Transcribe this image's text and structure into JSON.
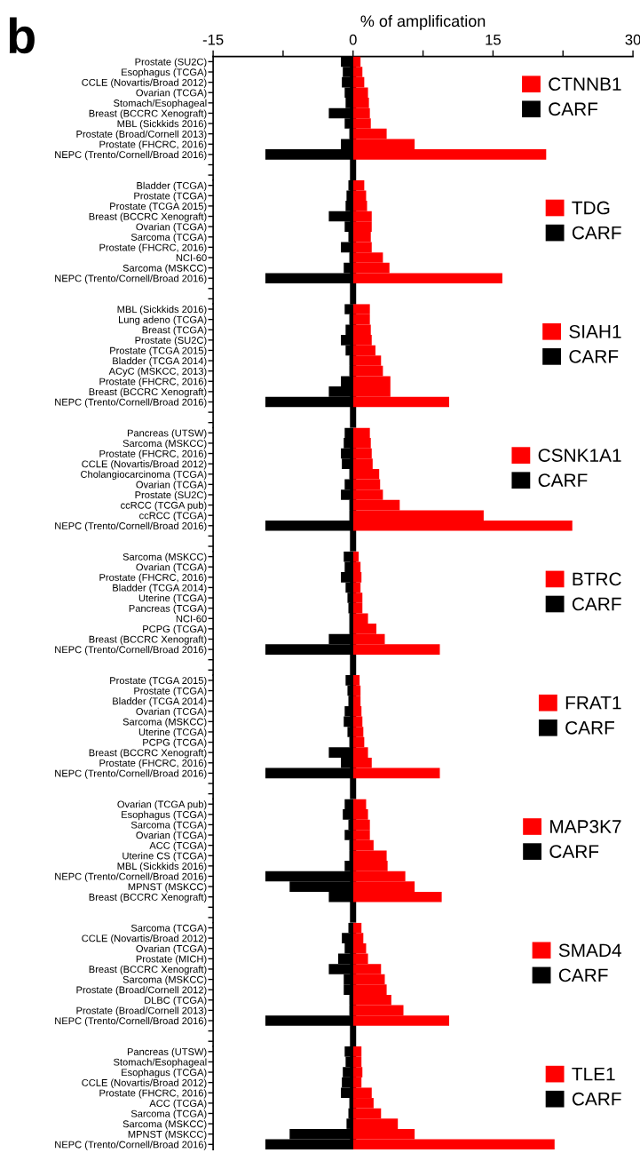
{
  "chart_data": [
    {
      "type": "bar",
      "orientation": "horizontal",
      "stacked": true,
      "xlabel": "% of amplification",
      "annotations": [
        "b"
      ],
      "xlim": [
        -15,
        30
      ],
      "xticks": [
        -15,
        {
          "value": -7.5,
          "label": null
        },
        0,
        {
          "value": 7.5,
          "label": null
        },
        15,
        {
          "value": 22.5,
          "label": null
        },
        30
      ],
      "legend": "top right",
      "ref_lines": [
        {
          "axis": "x",
          "value": 0,
          "label": null,
          "color": "#000000"
        }
      ],
      "categories": [
        "Prostate (SU2C)",
        "Esophagus (TCGA)",
        "CCLE (Novartis/Broad 2012)",
        "Ovarian (TCGA)",
        "Stomach/Esophageal",
        "Breast (BCCRC Xenograft)",
        "MBL (Sickkids 2016)",
        "Prostate (Broad/Cornell 2013)",
        "Prostate (FHCRC, 2016)",
        "NEPC (Trento/Cornell/Broad 2016)"
      ],
      "series": [
        {
          "name": "CTNNB1",
          "color": "#ff0000",
          "values": [
            0.8,
            1.0,
            1.2,
            1.6,
            1.7,
            1.8,
            1.9,
            3.6,
            6.6,
            20.7
          ]
        },
        {
          "name": "CARF",
          "color": "#000000",
          "values": [
            -1.3,
            -1.1,
            -1.2,
            -0.9,
            -0.8,
            -2.6,
            -0.9,
            -0.4,
            -1.3,
            -9.4
          ]
        }
      ]
    },
    {
      "type": "bar",
      "orientation": "horizontal",
      "stacked": true,
      "tick_labels": "y",
      "xlim": [
        -15,
        30
      ],
      "legend": "top right",
      "ref_lines": [
        {
          "axis": "x",
          "value": 0,
          "label": null,
          "color": "#000000"
        }
      ],
      "categories": [
        "Bladder (TCGA)",
        "Prostate (TCGA)",
        "Prostate (TCGA 2015)",
        "Breast (BCCRC Xenograft)",
        "Ovarian (TCGA)",
        "Sarcoma (TCGA)",
        "Prostate (FHCRC, 2016)",
        "NCI-60",
        "Sarcoma (MSKCC)",
        "NEPC (Trento/Cornell/Broad 2016)"
      ],
      "series": [
        {
          "name": "TDG",
          "color": "#ff0000",
          "values": [
            1.2,
            1.4,
            1.5,
            2.0,
            2.0,
            1.9,
            2.0,
            3.2,
            3.9,
            16.0
          ]
        },
        {
          "name": "CARF",
          "color": "#000000",
          "values": [
            -0.5,
            -0.7,
            -0.8,
            -2.6,
            -0.9,
            -0.5,
            -1.3,
            -0.4,
            -1.0,
            -9.4
          ]
        }
      ]
    },
    {
      "type": "bar",
      "orientation": "horizontal",
      "stacked": true,
      "tick_labels": "y",
      "xlim": [
        -15,
        30
      ],
      "legend": "top right",
      "ref_lines": [
        {
          "axis": "x",
          "value": 0,
          "label": null,
          "color": "#000000"
        }
      ],
      "categories": [
        "MBL (Sickkids 2016)",
        "Lung adeno (TCGA)",
        "Breast (TCGA)",
        "Prostate (SU2C)",
        "Prostate (TCGA 2015)",
        "Bladder (TCGA 2014)",
        "ACyC (MSKCC, 2013)",
        "Prostate (FHCRC, 2016)",
        "Breast (BCCRC Xenograft)",
        "NEPC (Trento/Cornell/Broad 2016)"
      ],
      "series": [
        {
          "name": "SIAH1",
          "color": "#ff0000",
          "values": [
            1.8,
            1.8,
            1.9,
            2.0,
            2.4,
            3.0,
            3.2,
            4.0,
            4.0,
            10.3
          ]
        },
        {
          "name": "CARF",
          "color": "#000000",
          "values": [
            -0.9,
            -0.4,
            -0.8,
            -1.3,
            -0.8,
            -0.4,
            -0.4,
            -1.3,
            -2.6,
            -9.4
          ]
        }
      ]
    },
    {
      "type": "bar",
      "orientation": "horizontal",
      "stacked": true,
      "tick_labels": "y",
      "xlim": [
        -15,
        30
      ],
      "legend": "top right",
      "ref_lines": [
        {
          "axis": "x",
          "value": 0,
          "label": null,
          "color": "#000000"
        }
      ],
      "categories": [
        "Pancreas (UTSW)",
        "Sarcoma (MSKCC)",
        "Prostate (FHCRC, 2016)",
        "CCLE (Novartis/Broad 2012)",
        "Cholangiocarcinoma (TCGA)",
        "Ovarian (TCGA)",
        "Prostate (SU2C)",
        "ccRCC (TCGA pub)",
        "ccRCC (TCGA)",
        "NEPC (Trento/Cornell/Broad 2016)"
      ],
      "series": [
        {
          "name": "CSNK1A1",
          "color": "#ff0000",
          "values": [
            1.8,
            1.9,
            2.0,
            2.1,
            2.8,
            2.9,
            3.2,
            5.0,
            14.0,
            23.5
          ]
        },
        {
          "name": "CARF",
          "color": "#000000",
          "values": [
            -0.9,
            -1.0,
            -1.3,
            -1.2,
            -0.4,
            -0.9,
            -1.3,
            -0.4,
            -0.4,
            -9.4
          ]
        }
      ]
    },
    {
      "type": "bar",
      "orientation": "horizontal",
      "stacked": true,
      "tick_labels": "y",
      "xlim": [
        -15,
        30
      ],
      "legend": "top right",
      "ref_lines": [
        {
          "axis": "x",
          "value": 0,
          "label": null,
          "color": "#000000"
        }
      ],
      "categories": [
        "Sarcoma (MSKCC)",
        "Ovarian (TCGA)",
        "Prostate (FHCRC, 2016)",
        "Bladder (TCGA 2014)",
        "Uterine (TCGA)",
        "Pancreas (TCGA)",
        "NCI-60",
        "PCPG (TCGA)",
        "Breast (BCCRC Xenograft)",
        "NEPC (Trento/Cornell/Broad 2016)"
      ],
      "series": [
        {
          "name": "BTRC",
          "color": "#ff0000",
          "values": [
            0.6,
            0.8,
            0.9,
            0.8,
            1.0,
            1.0,
            1.6,
            2.5,
            3.4,
            9.3
          ]
        },
        {
          "name": "CARF",
          "color": "#000000",
          "values": [
            -1.0,
            -0.9,
            -1.3,
            -0.8,
            -0.6,
            -0.5,
            -0.4,
            -0.4,
            -2.6,
            -9.4
          ]
        }
      ]
    },
    {
      "type": "bar",
      "orientation": "horizontal",
      "stacked": true,
      "tick_labels": "y",
      "xlim": [
        -15,
        30
      ],
      "legend": "top right",
      "ref_lines": [
        {
          "axis": "x",
          "value": 0,
          "label": null,
          "color": "#000000"
        }
      ],
      "categories": [
        "Prostate (TCGA 2015)",
        "Prostate (TCGA)",
        "Bladder (TCGA 2014)",
        "Ovarian (TCGA)",
        "Sarcoma (MSKCC)",
        "Uterine (TCGA)",
        "PCPG (TCGA)",
        "Breast (BCCRC Xenograft)",
        "Prostate (FHCRC, 2016)",
        "NEPC (Trento/Cornell/Broad 2016)"
      ],
      "series": [
        {
          "name": "FRAT1",
          "color": "#ff0000",
          "values": [
            0.7,
            0.8,
            0.8,
            0.9,
            1.0,
            1.1,
            1.2,
            1.6,
            2.0,
            9.3
          ]
        },
        {
          "name": "CARF",
          "color": "#000000",
          "values": [
            -0.8,
            -0.6,
            -0.5,
            -0.9,
            -1.0,
            -0.6,
            -0.4,
            -2.6,
            -1.3,
            -9.4
          ]
        }
      ]
    },
    {
      "type": "bar",
      "orientation": "horizontal",
      "stacked": true,
      "tick_labels": "y",
      "xlim": [
        -15,
        30
      ],
      "legend": "top right",
      "ref_lines": [
        {
          "axis": "x",
          "value": 0,
          "label": null,
          "color": "#000000"
        }
      ],
      "categories": [
        "Ovarian (TCGA pub)",
        "Esophagus (TCGA)",
        "Sarcoma (TCGA)",
        "Ovarian (TCGA)",
        "ACC (TCGA)",
        "Uterine CS (TCGA)",
        "MBL (Sickkids 2016)",
        "NEPC (Trento/Cornell/Broad 2016)",
        "MPNST (MSKCC)",
        "Breast (BCCRC Xenograft)"
      ],
      "series": [
        {
          "name": "MAP3K7",
          "color": "#ff0000",
          "values": [
            1.4,
            1.6,
            1.8,
            1.8,
            2.2,
            3.6,
            3.7,
            5.6,
            6.6,
            9.5
          ]
        },
        {
          "name": "CARF",
          "color": "#000000",
          "values": [
            -0.9,
            -1.1,
            -0.5,
            -0.9,
            -0.4,
            -0.4,
            -0.9,
            -9.4,
            -6.8,
            -2.6
          ]
        }
      ]
    },
    {
      "type": "bar",
      "orientation": "horizontal",
      "stacked": true,
      "tick_labels": "y",
      "xlim": [
        -15,
        30
      ],
      "legend": "top right",
      "ref_lines": [
        {
          "axis": "x",
          "value": 0,
          "label": null,
          "color": "#000000"
        }
      ],
      "categories": [
        "Sarcoma (TCGA)",
        "CCLE (Novartis/Broad 2012)",
        "Ovarian (TCGA)",
        "Prostate (MICH)",
        "Breast (BCCRC Xenograft)",
        "Sarcoma (MSKCC)",
        "Prostate (Broad/Cornell 2012)",
        "DLBC (TCGA)",
        "Prostate (Broad/Cornell 2013)",
        "NEPC (Trento/Cornell/Broad 2016)"
      ],
      "series": [
        {
          "name": "SMAD4",
          "color": "#ff0000",
          "values": [
            0.9,
            1.1,
            1.4,
            1.6,
            3.0,
            3.4,
            3.6,
            4.1,
            5.4,
            10.3
          ]
        },
        {
          "name": "CARF",
          "color": "#000000",
          "values": [
            -0.5,
            -1.2,
            -0.9,
            -1.6,
            -2.6,
            -1.0,
            -1.0,
            -0.4,
            -0.4,
            -9.4
          ]
        }
      ]
    },
    {
      "type": "bar",
      "orientation": "horizontal",
      "stacked": true,
      "tick_labels": "y",
      "xlim": [
        -15,
        30
      ],
      "legend": "top right",
      "ref_lines": [
        {
          "axis": "x",
          "value": 0,
          "label": null,
          "color": "#000000"
        }
      ],
      "categories": [
        "Pancreas (UTSW)",
        "Stomach/Esophageal",
        "Esophagus (TCGA)",
        "CCLE (Novartis/Broad 2012)",
        "Prostate (FHCRC, 2016)",
        "ACC (TCGA)",
        "Sarcoma (TCGA)",
        "Sarcoma (MSKCC)",
        "MPNST (MSKCC)",
        "NEPC (Trento/Cornell/Broad 2016)"
      ],
      "series": [
        {
          "name": "TLE1",
          "color": "#ff0000",
          "values": [
            0.9,
            0.9,
            1.0,
            0.9,
            2.0,
            2.2,
            3.0,
            4.8,
            6.6,
            21.6
          ]
        },
        {
          "name": "CARF",
          "color": "#000000",
          "values": [
            -0.9,
            -0.8,
            -1.1,
            -1.2,
            -1.3,
            -0.4,
            -0.5,
            -0.7,
            -6.8,
            -9.4
          ]
        }
      ]
    }
  ]
}
